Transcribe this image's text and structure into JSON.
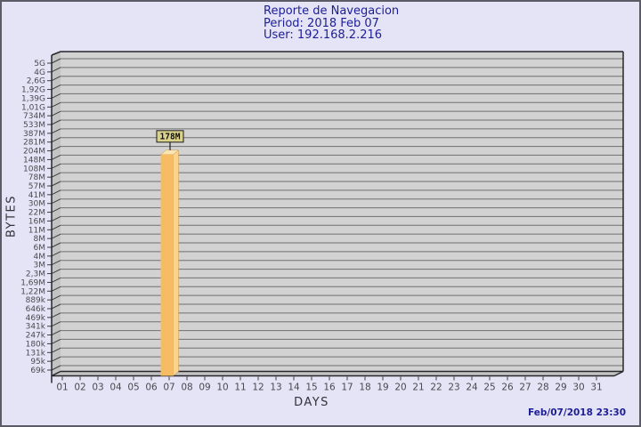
{
  "header": {
    "title": "Reporte de Navegacion",
    "period": "Period: 2018 Feb 07",
    "user": "User: 192.168.2.216"
  },
  "footer": {
    "timestamp": "Feb/07/2018 23:30"
  },
  "chart_data": {
    "type": "bar",
    "title": "Reporte de Navegacion",
    "subtitle_lines": [
      "Period: 2018 Feb 07",
      "User: 192.168.2.216"
    ],
    "xlabel": "DAYS",
    "ylabel": "BYTES",
    "y_scale": "log",
    "ylim": [
      69000,
      5000000000
    ],
    "grid": "horizontal",
    "legend": "none",
    "y_tick_labels": [
      "5G",
      "4G",
      "2,6G",
      "1,92G",
      "1,39G",
      "1,01G",
      "734M",
      "533M",
      "387M",
      "281M",
      "204M",
      "148M",
      "108M",
      "78M",
      "57M",
      "41M",
      "30M",
      "22M",
      "16M",
      "11M",
      "8M",
      "6M",
      "4M",
      "3M",
      "2,3M",
      "1,69M",
      "1,22M",
      "889k",
      "646k",
      "469k",
      "341k",
      "247k",
      "180k",
      "131k",
      "95k",
      "69k"
    ],
    "categories": [
      "01",
      "02",
      "03",
      "04",
      "05",
      "06",
      "07",
      "08",
      "09",
      "10",
      "11",
      "12",
      "13",
      "14",
      "15",
      "16",
      "17",
      "18",
      "19",
      "20",
      "21",
      "22",
      "23",
      "24",
      "25",
      "26",
      "27",
      "28",
      "29",
      "30",
      "31"
    ],
    "values": [
      0,
      0,
      0,
      0,
      0,
      0,
      178000000,
      0,
      0,
      0,
      0,
      0,
      0,
      0,
      0,
      0,
      0,
      0,
      0,
      0,
      0,
      0,
      0,
      0,
      0,
      0,
      0,
      0,
      0,
      0,
      0
    ],
    "annotations": [
      {
        "category": "07",
        "label": "178M"
      }
    ]
  },
  "colors": {
    "background": "#e4e4f6",
    "frame_border": "#5c5c66",
    "title_text": "#1d1d96",
    "timestamp_text": "#1d1d96",
    "plot_bg": "#d2d2d2",
    "plot_side": "#c3c3c3",
    "gridline": "#6f6f6f",
    "plot_border": "#26262b",
    "tick_text": "#4a4a50",
    "axis_title_text": "#33333a",
    "bar_front": "#f6bc62",
    "bar_side": "#fbd38c",
    "bar_top": "#fce5b4",
    "bar_label_bg": "#dad28b",
    "bar_label_border": "#1a1a1a",
    "bar_label_text": "#111111"
  }
}
